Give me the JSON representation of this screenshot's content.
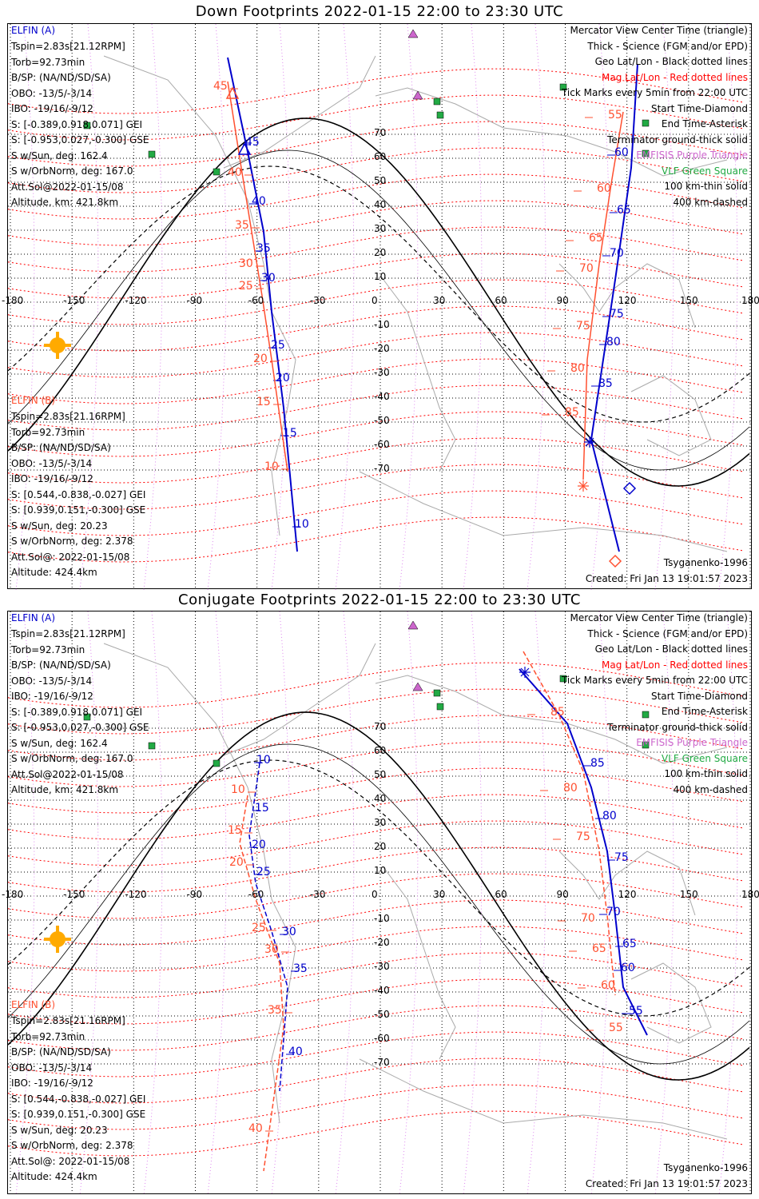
{
  "panels": [
    {
      "title": "Down Footprints 2022-01-15 22:00 to 23:30 UTC",
      "sat_a": {
        "name": "ELFIN (A)",
        "lines": [
          "Tspin=2.83s[21.12RPM]",
          "Torb=92.73min",
          "B/SP: (NA/ND/SD/SA)",
          "OBO: -13/5/-3/14",
          "IBO: -19/16/-9/12",
          "S: [-0.389,0.918,0.071] GEI",
          "S: [-0.953,0.027,-0.300] GSE",
          "S w/Sun, deg: 162.4",
          "S w/OrbNorm, deg: 167.0",
          "Att.Sol@2022-01-15/08",
          "Altitude, km: 421.8km"
        ]
      },
      "sat_b": {
        "name": "ELFIN (B)",
        "lines": [
          "Tspin=2.83s[21.16RPM]",
          "Torb=92.73min",
          "B/SP: (NA/ND/SD/SA)",
          "OBO: -13/5/-3/14",
          "IBO: -19/16/-9/12",
          "S: [0.544,-0.838,-0.027] GEI",
          "S: [0.939,0.151,-0.300] GSE",
          "S w/Sun, deg: 20.23",
          "S w/OrbNorm, deg: 2.378",
          "Att.Sol@: 2022-01-15/08",
          "Altitude: 424.4km"
        ]
      },
      "tick_labels_a": [
        "45",
        "40",
        "35",
        "30",
        "25",
        "20",
        "15",
        "10",
        "65",
        "70",
        "75",
        "80",
        "85",
        "60"
      ],
      "tick_labels_b": [
        "45",
        "40",
        "35",
        "30",
        "25",
        "20",
        "15",
        "10",
        "55",
        "60",
        "65",
        "70",
        "75",
        "80",
        "85"
      ],
      "footer_left": "Tsyganenko-1996",
      "footer_right": "Created: Fri Jan 13 19:01:57 2023"
    },
    {
      "title": "Conjugate Footprints 2022-01-15 22:00 to 23:30 UTC",
      "sat_a": {
        "name": "ELFIN (A)",
        "lines": [
          "Tspin=2.83s[21.12RPM]",
          "Torb=92.73min",
          "B/SP: (NA/ND/SD/SA)",
          "OBO: -13/5/-3/14",
          "IBO: -19/16/-9/12",
          "S: [-0.389,0.918,0.071] GEI",
          "S: [-0.953,0.027,-0.300] GSE",
          "S w/Sun, deg: 162.4",
          "S w/OrbNorm, deg: 167.0",
          "Att.Sol@2022-01-15/08",
          "Altitude, km: 421.8km"
        ]
      },
      "sat_b": {
        "name": "ELFIN (B)",
        "lines": [
          "Tspin=2.83s[21.16RPM]",
          "Torb=92.73min",
          "B/SP: (NA/ND/SD/SA)",
          "OBO: -13/5/-3/14",
          "IBO: -19/16/-9/12",
          "S: [0.544,-0.838,-0.027] GEI",
          "S: [0.939,0.151,-0.300] GSE",
          "S w/Sun, deg: 20.23",
          "S w/OrbNorm, deg: 2.378",
          "Att.Sol@: 2022-01-15/08",
          "Altitude: 424.4km"
        ]
      },
      "tick_labels_a": [
        "10",
        "15",
        "20",
        "25",
        "30",
        "35",
        "40",
        "55",
        "60",
        "65",
        "70",
        "75",
        "80",
        "85"
      ],
      "tick_labels_b": [
        "10",
        "15",
        "20",
        "25",
        "30",
        "35",
        "40",
        "55",
        "60",
        "65",
        "70",
        "75",
        "80",
        "85"
      ],
      "footer_left": "Tsyganenko-1996",
      "footer_right": "Created: Fri Jan 13 19:01:57 2023"
    }
  ],
  "legend": [
    {
      "text": "Mercator View Center Time (triangle)",
      "color": "#000000"
    },
    {
      "text": "Thick - Science (FGM and/or EPD)",
      "color": "#000000"
    },
    {
      "text": "Geo Lat/Lon - Black dotted lines",
      "color": "#000000"
    },
    {
      "text": "Mag Lat/Lon - Red dotted lines",
      "color": "#ff0000"
    },
    {
      "text": "Tick Marks every 5min from 22:00 UTC",
      "color": "#000000"
    },
    {
      "text": "Start Time-Diamond",
      "color": "#000000"
    },
    {
      "text": "End Time-Asterisk",
      "color": "#000000"
    },
    {
      "text": "Terminator ground-thick solid",
      "color": "#000000"
    },
    {
      "text": "EMFISIS Purple Triangle",
      "color": "#cc66cc"
    },
    {
      "text": "VLF Green Square",
      "color": "#22aa44"
    },
    {
      "text": "100 km-thin solid",
      "color": "#000000"
    },
    {
      "text": "400 km-dashed",
      "color": "#000000"
    }
  ],
  "map": {
    "lon_labels": [
      "-180",
      "-150",
      "-120",
      "-90",
      "-60",
      "-30",
      "0",
      "30",
      "60",
      "90",
      "120",
      "150",
      "180"
    ],
    "lat_labels": [
      "70",
      "60",
      "50",
      "40",
      "30",
      "20",
      "10",
      "-10",
      "-20",
      "-30",
      "-40",
      "-50",
      "-60",
      "-70"
    ]
  },
  "colors": {
    "sat_a": "#0000cc",
    "sat_b": "#ff5030",
    "mag_grid": "#ff0000",
    "geo_grid": "#000000",
    "emfisis": "#cc66cc",
    "vlf": "#22aa44",
    "sun": "#ffaa00"
  }
}
